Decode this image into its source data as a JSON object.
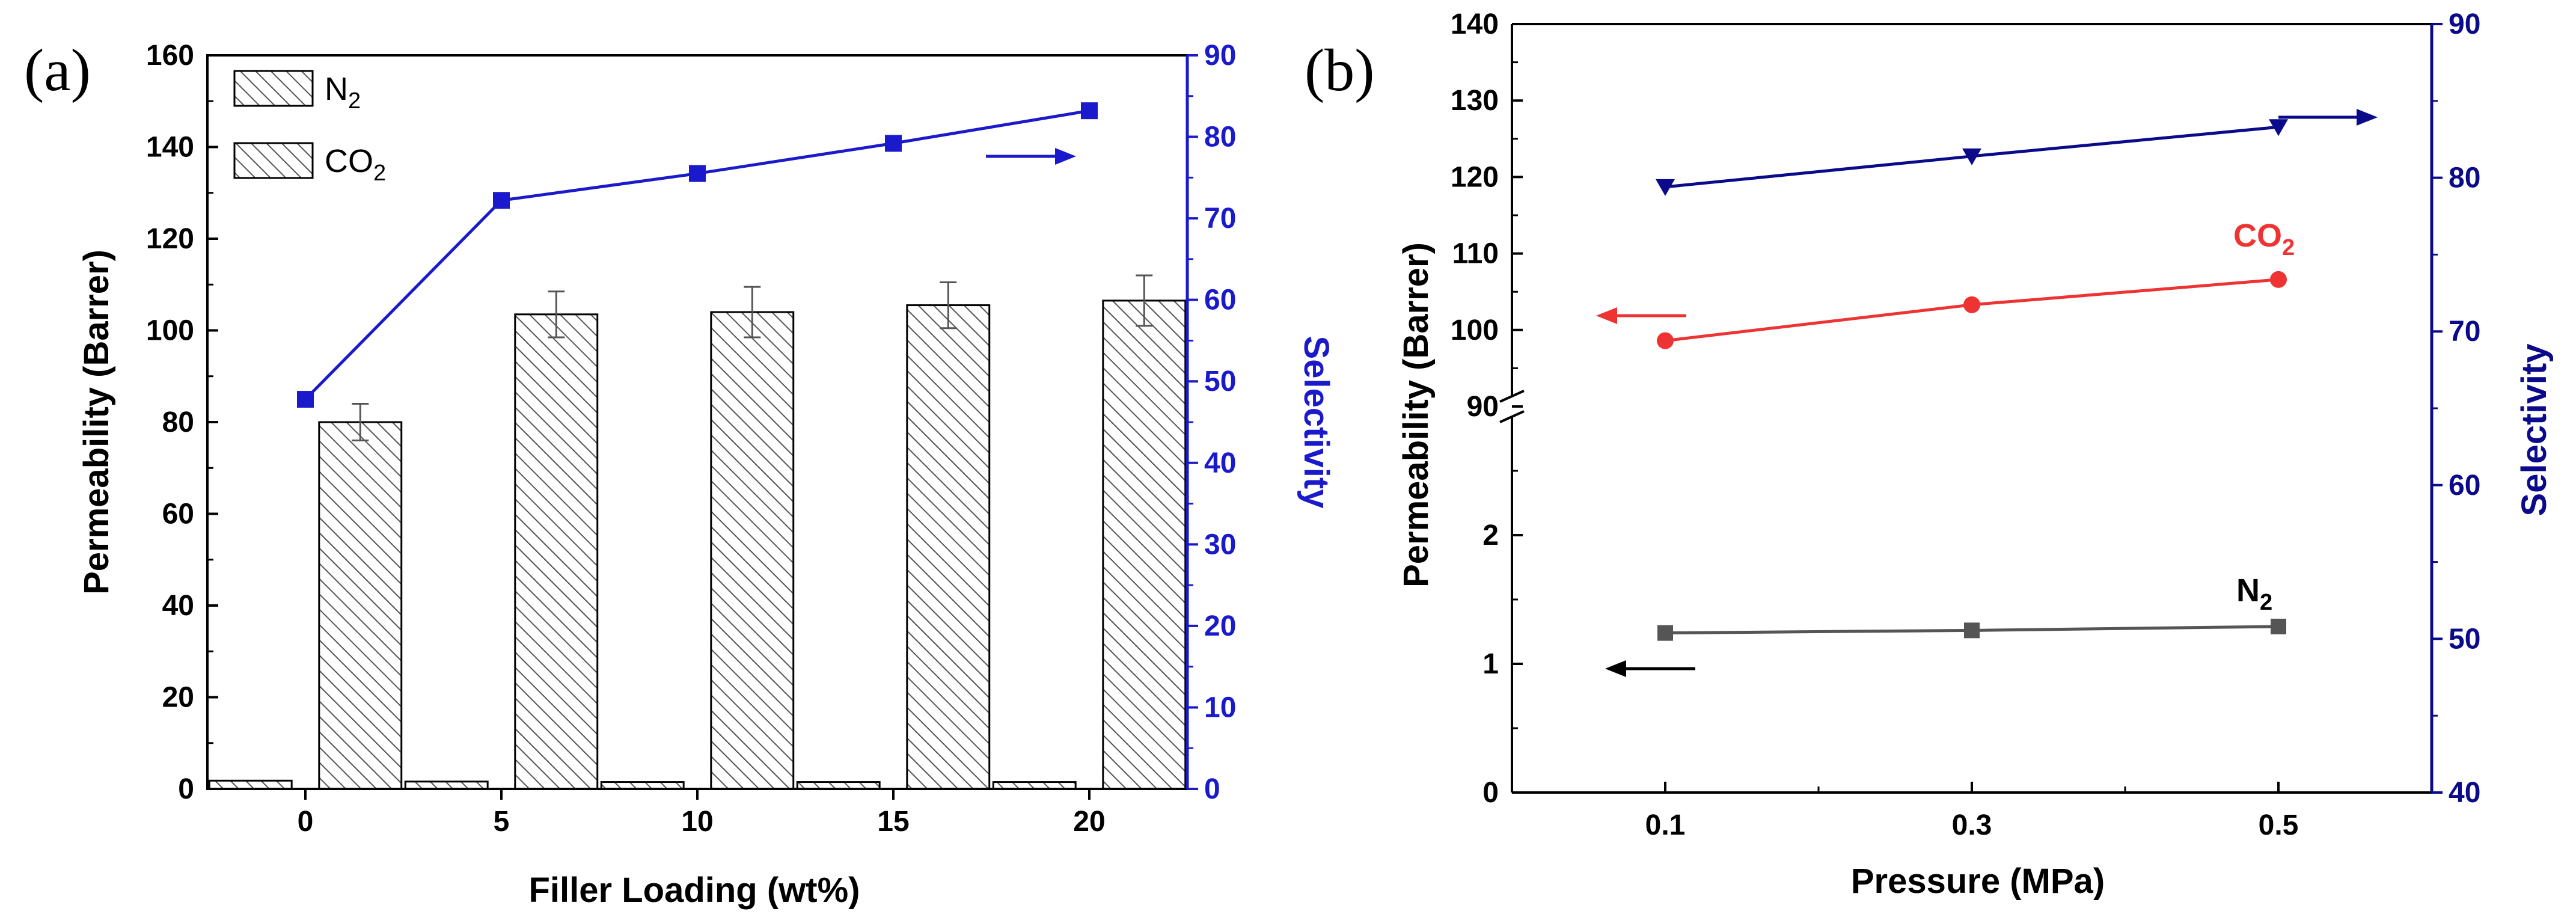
{
  "chart_data": [
    {
      "panel": "(a)",
      "type": "bar",
      "categories": [
        "0",
        "5",
        "10",
        "15",
        "20"
      ],
      "xlabel": "Filler Loading (wt%)",
      "ylabel": "Permeability (Barrer)",
      "ylim": [
        0,
        160
      ],
      "yticks": [
        "0",
        "20",
        "40",
        "60",
        "80",
        "100",
        "120",
        "140",
        "160"
      ],
      "series": [
        {
          "name": "N2",
          "label_main": "N",
          "label_sub": "2",
          "values": [
            1.8,
            1.6,
            1.5,
            1.5,
            1.5
          ]
        },
        {
          "name": "CO2",
          "label_main": "CO",
          "label_sub": "2",
          "values": [
            80,
            103.5,
            104,
            105.5,
            106.5
          ],
          "errors": [
            4,
            5,
            5.5,
            5,
            5.5
          ]
        }
      ],
      "y2label": "Selectivity",
      "y2lim": [
        0,
        90
      ],
      "y2ticks": [
        "0",
        "10",
        "20",
        "30",
        "40",
        "50",
        "60",
        "70",
        "80",
        "90"
      ],
      "selectivity": {
        "name": "Selectivity",
        "values": [
          47.8,
          72.2,
          75.5,
          79.2,
          83.2
        ],
        "color": "#1a1acc"
      },
      "arrow_direction": "right"
    },
    {
      "panel": "(b)",
      "type": "line",
      "x": [
        "0.1",
        "0.3",
        "0.5"
      ],
      "xlabel": "Pressure (MPa)",
      "ylabel": "Permeability (Barrer)",
      "y_axis_break": [
        3,
        90
      ],
      "ylim_lower": [
        0,
        3
      ],
      "ylim_upper": [
        90,
        140
      ],
      "yticks_lower": [
        "0",
        "1",
        "2"
      ],
      "yticks_upper": [
        "90",
        "100",
        "110",
        "120",
        "130",
        "140"
      ],
      "y2label": "Selectivity",
      "y2lim": [
        40,
        90
      ],
      "y2ticks": [
        "40",
        "50",
        "60",
        "70",
        "80",
        "90"
      ],
      "series": [
        {
          "name": "CO2",
          "label_main": "CO",
          "label_sub": "2",
          "axis": "left",
          "values": [
            98.6,
            103.3,
            106.6
          ],
          "color": "#ee3333",
          "marker": "circle",
          "arrow_direction": "left"
        },
        {
          "name": "N2",
          "label_main": "N",
          "label_sub": "2",
          "axis": "left",
          "values": [
            1.24,
            1.26,
            1.29
          ],
          "color": "#555555",
          "marker": "square",
          "arrow_direction": "left"
        },
        {
          "name": "Selectivity",
          "axis": "right",
          "values": [
            79.4,
            81.4,
            83.3
          ],
          "color": "#0a0a8a",
          "marker": "triangle-down",
          "arrow_direction": "right"
        }
      ]
    }
  ]
}
